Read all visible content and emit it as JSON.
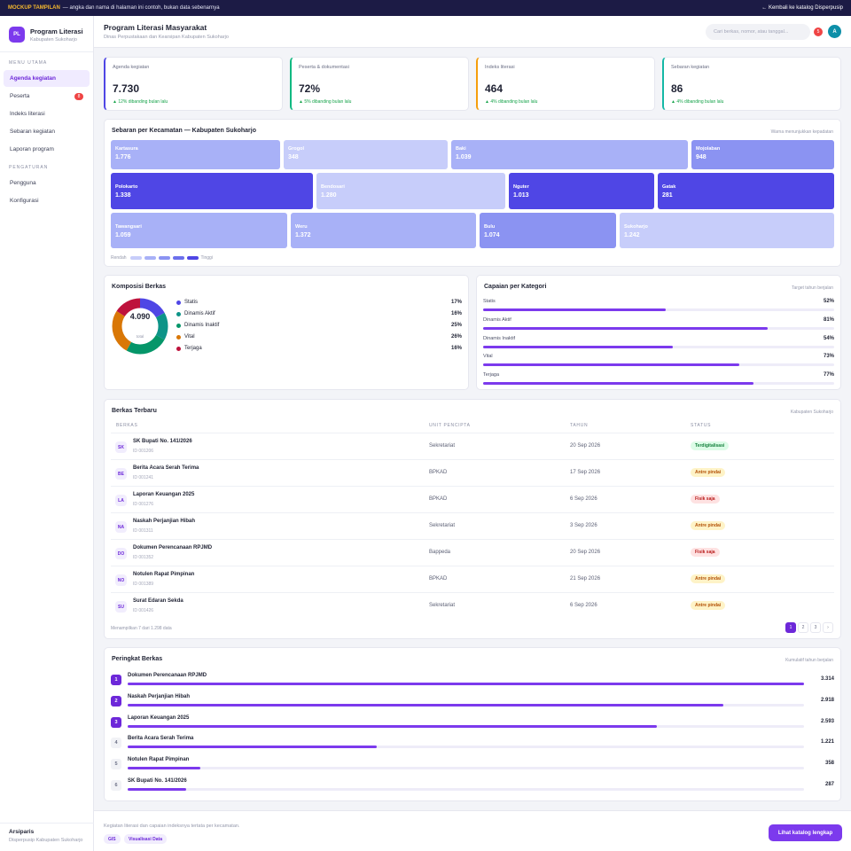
{
  "banner": {
    "mock_label": "MOCKUP TAMPILAN",
    "mock_text": "— angka dan nama di halaman ini contoh, bukan data sebenarnya",
    "back_link": "← Kembali ke katalog Disperpusip"
  },
  "sidebar": {
    "logo": "PL",
    "app_title": "Program Literasi",
    "app_subtitle": "Kabupaten Sukoharjo",
    "main_section": "MENU UTAMA",
    "main_items": [
      {
        "label": "Agenda kegiatan",
        "active": true
      },
      {
        "label": "Peserta",
        "badge": "8"
      },
      {
        "label": "Indeks literasi"
      },
      {
        "label": "Sebaran kegiatan"
      },
      {
        "label": "Laporan program"
      }
    ],
    "settings_section": "PENGATURAN",
    "settings_items": [
      {
        "label": "Pengguna"
      },
      {
        "label": "Konfigurasi"
      }
    ],
    "footer_name": "Arsiparis",
    "footer_sub": "Disperpusip Kabupaten Sukoharjo"
  },
  "header": {
    "title": "Program Literasi Masyarakat",
    "subtitle": "Dinas Perpustakaan dan Kearsipan Kabupaten Sukoharjo",
    "search_placeholder": "Cari berkas, nomor, atau tanggal...",
    "notif_count": "5",
    "avatar": "A"
  },
  "stats": [
    {
      "label": "Agenda kegiatan",
      "value": "7.730",
      "delta": "▲ 12% dibanding bulan lalu",
      "accent": "#4f46e5"
    },
    {
      "label": "Peserta & dokumentasi",
      "value": "72%",
      "delta": "▲ 5% dibanding bulan lalu",
      "accent": "#10b981"
    },
    {
      "label": "Indeks literasi",
      "value": "464",
      "delta": "▲ 4% dibanding bulan lalu",
      "accent": "#f59e0b"
    },
    {
      "label": "Sebaran kegiatan",
      "value": "86",
      "delta": "▲ 4% dibanding bulan lalu",
      "accent": "#14b8a6"
    }
  ],
  "map": {
    "title": "Sebaran per Kecamatan — Kabupaten Sukoharjo",
    "note": "Warna menunjukkan kepadatan",
    "tiles": [
      {
        "name": "Kartasura",
        "value": "1.776",
        "level": 2
      },
      {
        "name": "Grogol",
        "value": "348",
        "level": 1
      },
      {
        "name": "Baki",
        "value": "1.039",
        "level": 2
      },
      {
        "name": "Mojolaban",
        "value": "948",
        "level": 3
      },
      {
        "name": "Polokarto",
        "value": "1.338",
        "level": 5
      },
      {
        "name": "Bendosari",
        "value": "1.280",
        "level": 1
      },
      {
        "name": "Nguter",
        "value": "1.013",
        "level": 5
      },
      {
        "name": "Gatak",
        "value": "281",
        "level": 5
      },
      {
        "name": "Tawangsari",
        "value": "1.059",
        "level": 2
      },
      {
        "name": "Weru",
        "value": "1.372",
        "level": 2
      },
      {
        "name": "Bulu",
        "value": "1.074",
        "level": 3
      },
      {
        "name": "Sukoharjo",
        "value": "1.242",
        "level": 1
      }
    ],
    "legend_low": "Rendah",
    "legend_high": "Tinggi",
    "scale_colors": [
      "#c7cdfa",
      "#a8b1f7",
      "#8b93f2",
      "#6c70ec",
      "#4f46e5"
    ]
  },
  "composition": {
    "title": "Komposisi Berkas",
    "total": "4.090",
    "total_label": "total",
    "items": [
      {
        "label": "Statis",
        "pct": "17%",
        "value": 17,
        "color": "#4f46e5"
      },
      {
        "label": "Dinamis Aktif",
        "pct": "16%",
        "value": 16,
        "color": "#0d9488"
      },
      {
        "label": "Dinamis Inaktif",
        "pct": "25%",
        "value": 25,
        "color": "#059669"
      },
      {
        "label": "Vital",
        "pct": "26%",
        "value": 26,
        "color": "#d97706"
      },
      {
        "label": "Terjaga",
        "pct": "16%",
        "value": 16,
        "color": "#be123c"
      }
    ]
  },
  "achievement": {
    "title": "Capaian per Kategori",
    "note": "Target tahun berjalan",
    "items": [
      {
        "label": "Statis",
        "pct": "52%",
        "value": 0.52
      },
      {
        "label": "Dinamis Aktif",
        "pct": "81%",
        "value": 0.81
      },
      {
        "label": "Dinamis Inaktif",
        "pct": "54%",
        "value": 0.54
      },
      {
        "label": "Vital",
        "pct": "73%",
        "value": 0.73
      },
      {
        "label": "Terjaga",
        "pct": "77%",
        "value": 0.77
      }
    ]
  },
  "recent": {
    "title": "Berkas Terbaru",
    "note": "Kabupaten Sukoharjo",
    "columns": [
      "BERKAS",
      "UNIT PENCIPTA",
      "TAHUN",
      "STATUS"
    ],
    "rows": [
      {
        "initials": "SK",
        "title": "SK Bupati No. 141/2026",
        "id": "ID 001206",
        "unit": "Sekretariat",
        "date": "20 Sep 2026",
        "status": "Terdigitalisasi",
        "status_type": "ok"
      },
      {
        "initials": "BE",
        "title": "Berita Acara Serah Terima",
        "id": "ID 001241",
        "unit": "BPKAD",
        "date": "17 Sep 2026",
        "status": "Antre pindai",
        "status_type": "wait"
      },
      {
        "initials": "LA",
        "title": "Laporan Keuangan 2025",
        "id": "ID 001276",
        "unit": "BPKAD",
        "date": "6 Sep 2026",
        "status": "Fisik saja",
        "status_type": "phys"
      },
      {
        "initials": "NA",
        "title": "Naskah Perjanjian Hibah",
        "id": "ID 001311",
        "unit": "Sekretariat",
        "date": "3 Sep 2026",
        "status": "Antre pindai",
        "status_type": "wait"
      },
      {
        "initials": "DO",
        "title": "Dokumen Perencanaan RPJMD",
        "id": "ID 001352",
        "unit": "Bappeda",
        "date": "20 Sep 2026",
        "status": "Fisik saja",
        "status_type": "phys"
      },
      {
        "initials": "NO",
        "title": "Notulen Rapat Pimpinan",
        "id": "ID 001389",
        "unit": "BPKAD",
        "date": "21 Sep 2026",
        "status": "Antre pindai",
        "status_type": "wait"
      },
      {
        "initials": "SU",
        "title": "Surat Edaran Sekda",
        "id": "ID 001426",
        "unit": "Sekretariat",
        "date": "6 Sep 2026",
        "status": "Antre pindai",
        "status_type": "wait"
      }
    ],
    "footer_text": "Menampilkan 7 dari 1.298 data",
    "pages": [
      "1",
      "2",
      "3",
      "›"
    ]
  },
  "ranking": {
    "title": "Peringkat Berkas",
    "note": "Kumulatif tahun berjalan",
    "items": [
      {
        "rank": "1",
        "title": "Dokumen Perencanaan RPJMD",
        "value": "3.314",
        "amount": 3314
      },
      {
        "rank": "2",
        "title": "Naskah Perjanjian Hibah",
        "value": "2.918",
        "amount": 2918
      },
      {
        "rank": "3",
        "title": "Laporan Keuangan 2025",
        "value": "2.593",
        "amount": 2593
      },
      {
        "rank": "4",
        "title": "Berita Acara Serah Terima",
        "value": "1.221",
        "amount": 1221
      },
      {
        "rank": "5",
        "title": "Notulen Rapat Pimpinan",
        "value": "358",
        "amount": 358
      },
      {
        "rank": "6",
        "title": "SK Bupati No. 141/2026",
        "value": "287",
        "amount": 287
      }
    ]
  },
  "footer": {
    "text": "Kegiatan literasi dan capaian indeksnya tertata per kecamatan.",
    "tags": [
      "GIS",
      "Visualisasi Data"
    ],
    "cta": "Lihat katalog lengkap"
  }
}
